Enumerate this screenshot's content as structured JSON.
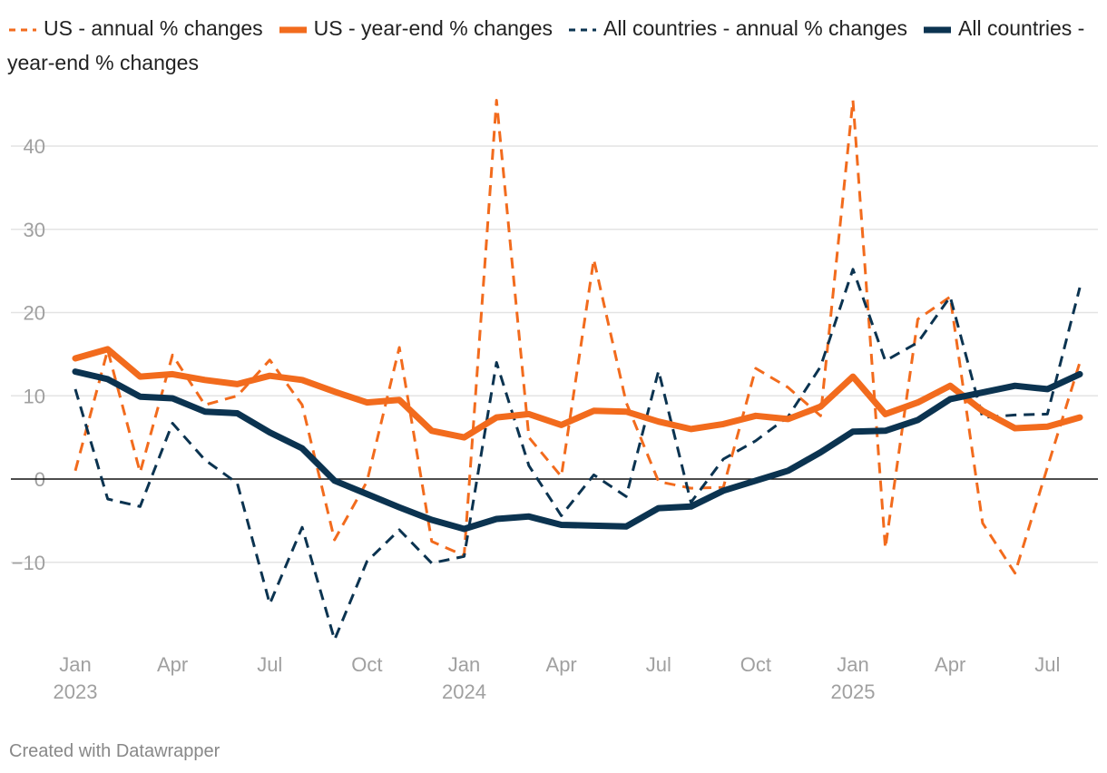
{
  "legend": [
    {
      "label": "US - annual % changes",
      "color": "#f26b1d",
      "style": "dashed"
    },
    {
      "label": "US - year-end % changes",
      "color": "#f26b1d",
      "style": "solid"
    },
    {
      "label": "All countries - annual % changes",
      "color": "#0b3350",
      "style": "dashed"
    },
    {
      "label": "All countries - year-end % changes",
      "color": "#0b3350",
      "style": "solid"
    }
  ],
  "credit": "Created with Datawrapper",
  "chart_data": {
    "type": "line",
    "title": "",
    "xlabel": "",
    "ylabel": "",
    "ylim": [
      -20,
      45
    ],
    "y_ticks": [
      40,
      30,
      20,
      10,
      0,
      -10
    ],
    "y_tick_labels": [
      "40",
      "30",
      "20",
      "10",
      "0",
      "−10"
    ],
    "x": [
      "2023-01",
      "2023-02",
      "2023-03",
      "2023-04",
      "2023-05",
      "2023-06",
      "2023-07",
      "2023-08",
      "2023-09",
      "2023-10",
      "2023-11",
      "2023-12",
      "2024-01",
      "2024-02",
      "2024-03",
      "2024-04",
      "2024-05",
      "2024-06",
      "2024-07",
      "2024-08",
      "2024-09",
      "2024-10",
      "2024-11",
      "2024-12",
      "2025-01",
      "2025-02",
      "2025-03",
      "2025-04",
      "2025-05",
      "2025-06",
      "2025-07",
      "2025-08"
    ],
    "x_tick_labels": [
      {
        "index": 0,
        "month": "Jan",
        "year": "2023"
      },
      {
        "index": 3,
        "month": "Apr",
        "year": ""
      },
      {
        "index": 6,
        "month": "Jul",
        "year": ""
      },
      {
        "index": 9,
        "month": "Oct",
        "year": ""
      },
      {
        "index": 12,
        "month": "Jan",
        "year": "2024"
      },
      {
        "index": 15,
        "month": "Apr",
        "year": ""
      },
      {
        "index": 18,
        "month": "Jul",
        "year": ""
      },
      {
        "index": 21,
        "month": "Oct",
        "year": ""
      },
      {
        "index": 24,
        "month": "Jan",
        "year": "2025"
      },
      {
        "index": 27,
        "month": "Apr",
        "year": ""
      },
      {
        "index": 30,
        "month": "Jul",
        "year": ""
      }
    ],
    "series": [
      {
        "name": "US - annual % changes",
        "color": "#f26b1d",
        "dashed": true,
        "values": [
          1.0,
          15.5,
          0.8,
          14.9,
          8.9,
          10.0,
          14.3,
          8.9,
          -7.3,
          -0.3,
          15.8,
          -7.5,
          -9.2,
          45.5,
          5.0,
          0.3,
          26.4,
          9.2,
          -0.3,
          -1.1,
          -1.0,
          13.3,
          11.0,
          7.6,
          45.5,
          -8.3,
          19.2,
          21.9,
          -5.3,
          -11.3,
          1.4,
          14.0
        ]
      },
      {
        "name": "US - year-end % changes",
        "color": "#f26b1d",
        "dashed": false,
        "values": [
          14.5,
          15.6,
          12.3,
          12.6,
          11.9,
          11.4,
          12.4,
          11.9,
          10.5,
          9.2,
          9.5,
          5.8,
          5.0,
          7.4,
          7.8,
          6.5,
          8.2,
          8.1,
          6.9,
          6.0,
          6.6,
          7.6,
          7.2,
          8.7,
          12.3,
          7.8,
          9.2,
          11.2,
          8.2,
          6.1,
          6.3,
          7.4
        ]
      },
      {
        "name": "All countries - annual % changes",
        "color": "#0b3350",
        "dashed": true,
        "values": [
          10.8,
          -2.4,
          -3.3,
          6.7,
          2.3,
          -0.5,
          -15.0,
          -5.8,
          -19.3,
          -9.9,
          -6.1,
          -10.1,
          -9.3,
          14.0,
          1.6,
          -4.4,
          0.5,
          -2.1,
          13.0,
          -2.8,
          2.4,
          4.6,
          7.5,
          13.5,
          25.2,
          14.2,
          16.4,
          21.9,
          7.4,
          7.7,
          7.8,
          23.0
        ]
      },
      {
        "name": "All countries - year-end % changes",
        "color": "#0b3350",
        "dashed": false,
        "values": [
          12.9,
          12.0,
          9.9,
          9.7,
          8.1,
          7.9,
          5.6,
          3.7,
          -0.2,
          -1.8,
          -3.4,
          -4.9,
          -6.0,
          -4.8,
          -4.5,
          -5.5,
          -5.6,
          -5.7,
          -3.5,
          -3.3,
          -1.4,
          -0.2,
          1.0,
          3.2,
          5.7,
          5.8,
          7.1,
          9.6,
          10.4,
          11.2,
          10.8,
          12.6
        ]
      }
    ]
  }
}
